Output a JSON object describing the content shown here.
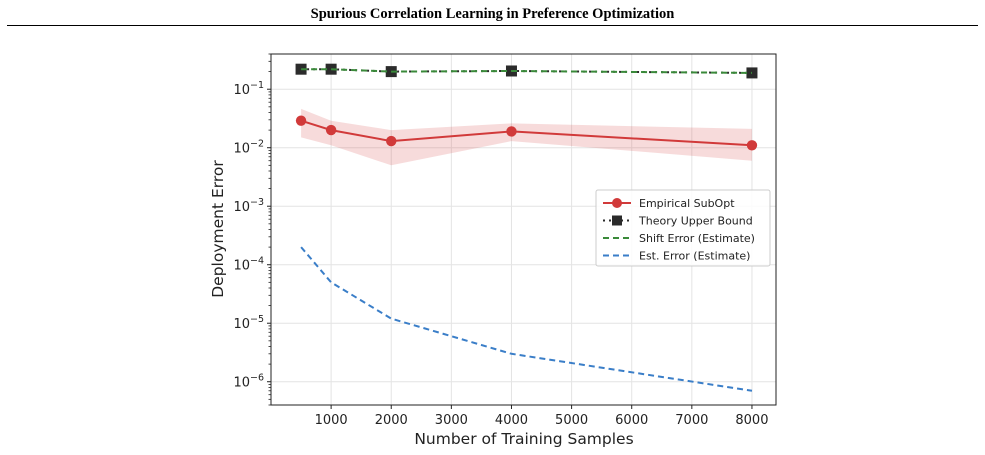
{
  "header": {
    "title": "Spurious Correlation Learning in Preference Optimization"
  },
  "chart_data": {
    "type": "line",
    "title": "",
    "xlabel": "Number of Training Samples",
    "ylabel": "Deployment Error",
    "y_scale": "log",
    "xlim": [
      0,
      8400
    ],
    "ylim": [
      4e-07,
      0.4
    ],
    "x_ticks": [
      1000,
      2000,
      3000,
      4000,
      5000,
      6000,
      7000,
      8000
    ],
    "y_ticks": [
      {
        "value": 0.1,
        "base": "10",
        "exp": "−1"
      },
      {
        "value": 0.01,
        "base": "10",
        "exp": "−2"
      },
      {
        "value": 0.001,
        "base": "10",
        "exp": "−3"
      },
      {
        "value": 0.0001,
        "base": "10",
        "exp": "−4"
      },
      {
        "value": 1e-05,
        "base": "10",
        "exp": "−5"
      },
      {
        "value": 1e-06,
        "base": "10",
        "exp": "−6"
      }
    ],
    "grid": true,
    "legend_position": "center-right",
    "series": [
      {
        "name": "Empirical SubOpt",
        "color": "#d13a3a",
        "style": "solid-circle",
        "x": [
          500,
          1000,
          2000,
          4000,
          8000
        ],
        "y": [
          0.029,
          0.02,
          0.013,
          0.019,
          0.011
        ],
        "band_lower": [
          0.015,
          0.011,
          0.005,
          0.013,
          0.006
        ],
        "band_upper": [
          0.046,
          0.029,
          0.02,
          0.026,
          0.021
        ]
      },
      {
        "name": "Theory Upper Bound",
        "color": "#2b2b2b",
        "style": "dotted-square",
        "x": [
          500,
          1000,
          2000,
          4000,
          8000
        ],
        "y": [
          0.22,
          0.22,
          0.2,
          0.205,
          0.19
        ]
      },
      {
        "name": "Shift Error (Estimate)",
        "color": "#3a8a3a",
        "style": "dashed",
        "x": [
          500,
          1000,
          2000,
          4000,
          8000
        ],
        "y": [
          0.22,
          0.22,
          0.2,
          0.205,
          0.19
        ]
      },
      {
        "name": "Est. Error (Estimate)",
        "color": "#3a7ec8",
        "style": "dashed",
        "x": [
          500,
          1000,
          2000,
          4000,
          8000
        ],
        "y": [
          0.0002,
          5e-05,
          1.2e-05,
          3e-06,
          7e-07
        ]
      }
    ]
  }
}
